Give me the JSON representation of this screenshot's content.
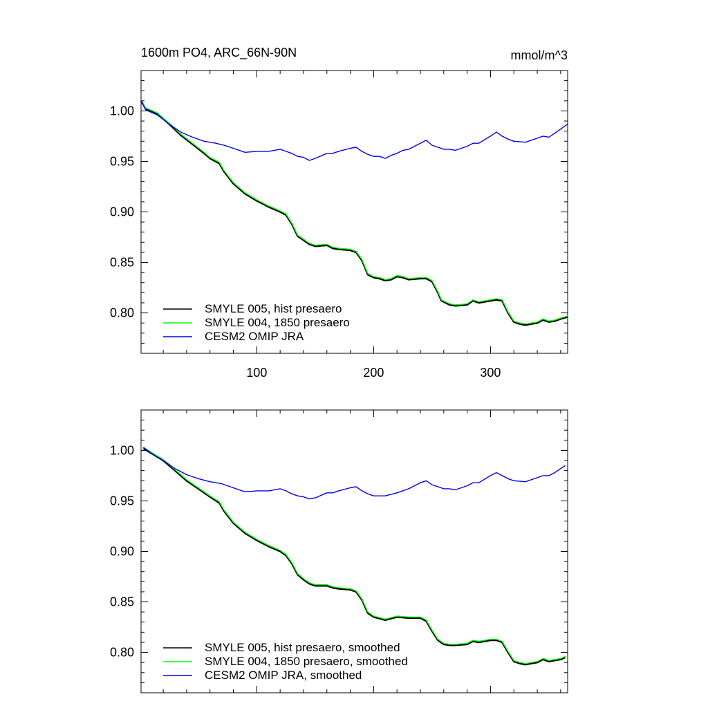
{
  "chart_data": [
    {
      "type": "line",
      "title_left": "1600m PO4, ARC_66N-90N",
      "title_right": "mmol/m^3",
      "xlabel": "",
      "ylabel": "",
      "xlim": [
        1,
        366
      ],
      "ylim": [
        0.76,
        1.04
      ],
      "x_ticks": [
        100,
        200,
        300
      ],
      "x_tick_labels": [
        "100",
        "200",
        "300"
      ],
      "y_ticks": [
        0.8,
        0.85,
        0.9,
        0.95,
        1.0
      ],
      "y_tick_labels": [
        "0.80",
        "0.85",
        "0.90",
        "0.95",
        "1.00"
      ],
      "grid": false,
      "legend_position": "bottom-left",
      "series": [
        {
          "name": "SMYLE 005, hist presaero",
          "color": "#000000",
          "x": [
            1,
            5,
            15,
            25,
            35,
            45,
            55,
            60,
            68,
            72,
            80,
            90,
            100,
            110,
            120,
            125,
            130,
            135,
            140,
            145,
            150,
            160,
            165,
            170,
            180,
            185,
            190,
            195,
            200,
            205,
            210,
            215,
            220,
            225,
            230,
            240,
            245,
            250,
            255,
            258,
            265,
            270,
            280,
            285,
            290,
            300,
            305,
            310,
            315,
            320,
            325,
            330,
            340,
            345,
            350,
            355,
            360,
            366
          ],
          "y": [
            1.01,
            1.002,
            0.997,
            0.987,
            0.976,
            0.967,
            0.958,
            0.953,
            0.948,
            0.94,
            0.928,
            0.918,
            0.911,
            0.905,
            0.9,
            0.897,
            0.888,
            0.876,
            0.872,
            0.868,
            0.866,
            0.867,
            0.864,
            0.863,
            0.862,
            0.86,
            0.852,
            0.838,
            0.835,
            0.834,
            0.832,
            0.833,
            0.836,
            0.835,
            0.833,
            0.834,
            0.834,
            0.831,
            0.82,
            0.812,
            0.808,
            0.807,
            0.808,
            0.812,
            0.81,
            0.812,
            0.813,
            0.812,
            0.8,
            0.791,
            0.789,
            0.788,
            0.79,
            0.793,
            0.791,
            0.792,
            0.794,
            0.796
          ]
        },
        {
          "name": "SMYLE 004, 1850 presaero",
          "color": "#00ff00",
          "x": [
            1,
            5,
            15,
            25,
            35,
            45,
            55,
            60,
            68,
            72,
            80,
            90,
            100,
            110,
            120,
            125,
            130,
            135,
            140,
            145,
            150,
            160,
            165,
            170,
            180,
            185,
            190,
            195,
            200,
            205,
            210,
            215,
            220,
            225,
            230,
            240,
            245,
            250,
            255,
            258,
            265,
            270,
            280,
            285,
            290,
            300,
            305,
            310,
            315,
            320,
            325,
            330,
            340,
            345,
            350,
            355,
            360,
            366
          ],
          "y": [
            1.01,
            1.003,
            0.998,
            0.988,
            0.977,
            0.968,
            0.959,
            0.954,
            0.949,
            0.941,
            0.929,
            0.919,
            0.912,
            0.906,
            0.901,
            0.898,
            0.889,
            0.877,
            0.873,
            0.869,
            0.867,
            0.868,
            0.865,
            0.864,
            0.863,
            0.861,
            0.853,
            0.839,
            0.836,
            0.835,
            0.833,
            0.834,
            0.837,
            0.836,
            0.834,
            0.835,
            0.835,
            0.832,
            0.821,
            0.813,
            0.809,
            0.808,
            0.809,
            0.813,
            0.811,
            0.813,
            0.814,
            0.813,
            0.801,
            0.792,
            0.79,
            0.789,
            0.791,
            0.794,
            0.792,
            0.793,
            0.795,
            0.797
          ]
        },
        {
          "name": "CESM2 OMIP JRA",
          "color": "#0000ee",
          "x": [
            1,
            5,
            15,
            25,
            35,
            45,
            55,
            65,
            72,
            80,
            90,
            100,
            110,
            120,
            125,
            130,
            135,
            140,
            145,
            150,
            160,
            165,
            170,
            180,
            185,
            190,
            195,
            200,
            205,
            210,
            215,
            220,
            225,
            230,
            240,
            245,
            250,
            255,
            260,
            265,
            270,
            280,
            285,
            290,
            300,
            305,
            310,
            315,
            320,
            330,
            340,
            345,
            350,
            355,
            360,
            366
          ],
          "y": [
            1.01,
            1.001,
            0.996,
            0.987,
            0.979,
            0.974,
            0.97,
            0.968,
            0.966,
            0.963,
            0.959,
            0.96,
            0.96,
            0.962,
            0.96,
            0.958,
            0.955,
            0.954,
            0.951,
            0.953,
            0.958,
            0.958,
            0.96,
            0.963,
            0.964,
            0.96,
            0.957,
            0.955,
            0.955,
            0.953,
            0.956,
            0.958,
            0.961,
            0.962,
            0.968,
            0.971,
            0.966,
            0.964,
            0.962,
            0.962,
            0.961,
            0.965,
            0.968,
            0.968,
            0.975,
            0.979,
            0.975,
            0.972,
            0.97,
            0.969,
            0.973,
            0.975,
            0.974,
            0.978,
            0.982,
            0.987
          ]
        }
      ]
    },
    {
      "type": "line",
      "title_left": "",
      "title_right": "",
      "xlabel": "",
      "ylabel": "",
      "xlim": [
        1,
        366
      ],
      "ylim": [
        0.76,
        1.04
      ],
      "x_ticks": [
        100,
        200,
        300
      ],
      "x_tick_labels": [],
      "y_ticks": [
        0.8,
        0.85,
        0.9,
        0.95,
        1.0
      ],
      "y_tick_labels": [
        "0.80",
        "0.85",
        "0.90",
        "0.95",
        "1.00"
      ],
      "grid": false,
      "legend_position": "bottom-left",
      "series": [
        {
          "name": "SMYLE 005, hist presaero, smoothed",
          "color": "#000000",
          "x": [
            3,
            10,
            20,
            30,
            40,
            50,
            60,
            68,
            72,
            80,
            90,
            100,
            110,
            120,
            125,
            130,
            135,
            140,
            145,
            150,
            160,
            165,
            170,
            180,
            185,
            190,
            195,
            200,
            210,
            220,
            230,
            240,
            245,
            250,
            255,
            260,
            265,
            270,
            280,
            285,
            290,
            300,
            305,
            310,
            315,
            320,
            325,
            330,
            340,
            345,
            350,
            355,
            360,
            364
          ],
          "y": [
            1.002,
            0.997,
            0.99,
            0.98,
            0.97,
            0.962,
            0.954,
            0.948,
            0.94,
            0.928,
            0.918,
            0.911,
            0.905,
            0.9,
            0.896,
            0.888,
            0.877,
            0.872,
            0.868,
            0.866,
            0.866,
            0.864,
            0.863,
            0.862,
            0.86,
            0.852,
            0.839,
            0.835,
            0.832,
            0.835,
            0.834,
            0.834,
            0.831,
            0.821,
            0.812,
            0.808,
            0.807,
            0.807,
            0.808,
            0.811,
            0.81,
            0.812,
            0.812,
            0.81,
            0.8,
            0.791,
            0.789,
            0.788,
            0.79,
            0.793,
            0.791,
            0.792,
            0.793,
            0.795
          ]
        },
        {
          "name": "SMYLE 004, 1850 presaero, smoothed",
          "color": "#00ff00",
          "x": [
            3,
            10,
            20,
            30,
            40,
            50,
            60,
            68,
            72,
            80,
            90,
            100,
            110,
            120,
            125,
            130,
            135,
            140,
            145,
            150,
            160,
            165,
            170,
            180,
            185,
            190,
            195,
            200,
            210,
            220,
            230,
            240,
            245,
            250,
            255,
            260,
            265,
            270,
            280,
            285,
            290,
            300,
            305,
            310,
            315,
            320,
            325,
            330,
            340,
            345,
            350,
            355,
            360,
            364
          ],
          "y": [
            1.003,
            0.998,
            0.991,
            0.981,
            0.971,
            0.963,
            0.955,
            0.949,
            0.941,
            0.929,
            0.919,
            0.912,
            0.906,
            0.901,
            0.897,
            0.889,
            0.878,
            0.873,
            0.869,
            0.867,
            0.867,
            0.865,
            0.864,
            0.863,
            0.861,
            0.853,
            0.84,
            0.836,
            0.833,
            0.836,
            0.835,
            0.835,
            0.832,
            0.822,
            0.813,
            0.809,
            0.808,
            0.808,
            0.809,
            0.812,
            0.811,
            0.813,
            0.813,
            0.811,
            0.801,
            0.792,
            0.79,
            0.789,
            0.791,
            0.794,
            0.792,
            0.793,
            0.794,
            0.796
          ]
        },
        {
          "name": "CESM2 OMIP JRA, smoothed",
          "color": "#0000ee",
          "x": [
            3,
            10,
            20,
            30,
            40,
            50,
            60,
            70,
            80,
            90,
            100,
            110,
            120,
            125,
            130,
            135,
            140,
            145,
            150,
            160,
            165,
            170,
            180,
            185,
            190,
            195,
            200,
            210,
            220,
            230,
            240,
            245,
            250,
            255,
            260,
            265,
            270,
            280,
            285,
            290,
            300,
            305,
            310,
            315,
            320,
            330,
            340,
            345,
            350,
            355,
            360,
            364
          ],
          "y": [
            1.003,
            0.997,
            0.99,
            0.982,
            0.976,
            0.972,
            0.969,
            0.967,
            0.963,
            0.959,
            0.96,
            0.96,
            0.962,
            0.96,
            0.957,
            0.955,
            0.954,
            0.952,
            0.953,
            0.958,
            0.958,
            0.96,
            0.963,
            0.964,
            0.96,
            0.957,
            0.955,
            0.955,
            0.958,
            0.962,
            0.968,
            0.97,
            0.966,
            0.964,
            0.962,
            0.962,
            0.961,
            0.965,
            0.968,
            0.968,
            0.975,
            0.978,
            0.975,
            0.972,
            0.97,
            0.969,
            0.973,
            0.975,
            0.975,
            0.978,
            0.982,
            0.985
          ]
        }
      ]
    }
  ]
}
